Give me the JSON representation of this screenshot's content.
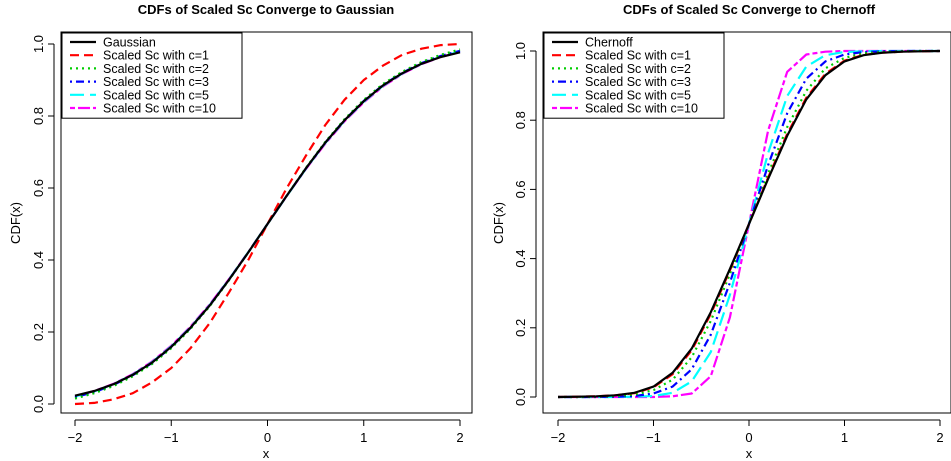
{
  "chart_data": [
    {
      "type": "line",
      "title": "CDFs of Scaled Sc Converge to Gaussian",
      "xlabel": "x",
      "ylabel": "CDF(x)",
      "xlim": [
        -2,
        2
      ],
      "ylim": [
        0,
        1
      ],
      "x_ticks": [
        "-2",
        "-1",
        "0",
        "1",
        "2"
      ],
      "y_ticks": [
        "0.0",
        "0.2",
        "0.4",
        "0.6",
        "0.8",
        "1.0"
      ],
      "grid": false,
      "legend_position": "top-left",
      "x": [
        -2.0,
        -1.8,
        -1.6,
        -1.4,
        -1.2,
        -1.0,
        -0.8,
        -0.6,
        -0.4,
        -0.2,
        0.0,
        0.2,
        0.4,
        0.6,
        0.8,
        1.0,
        1.2,
        1.4,
        1.6,
        1.8,
        2.0
      ],
      "series": [
        {
          "name": "Gaussian",
          "color": "#000000",
          "dash": "solid",
          "values": [
            0.023,
            0.036,
            0.055,
            0.081,
            0.115,
            0.159,
            0.212,
            0.274,
            0.345,
            0.421,
            0.5,
            0.579,
            0.655,
            0.726,
            0.788,
            0.841,
            0.885,
            0.919,
            0.945,
            0.964,
            0.977
          ]
        },
        {
          "name": "Scaled Sc with c=1",
          "color": "#ff0000",
          "dash": "dashed",
          "values": [
            0.0,
            0.003,
            0.013,
            0.03,
            0.06,
            0.1,
            0.155,
            0.225,
            0.31,
            0.4,
            0.5,
            0.6,
            0.69,
            0.775,
            0.845,
            0.9,
            0.94,
            0.97,
            0.987,
            0.997,
            1.0
          ]
        },
        {
          "name": "Scaled Sc with c=2",
          "color": "#00cd00",
          "dash": "dotted",
          "values": [
            0.015,
            0.03,
            0.05,
            0.077,
            0.111,
            0.155,
            0.209,
            0.272,
            0.344,
            0.421,
            0.5,
            0.579,
            0.656,
            0.728,
            0.791,
            0.845,
            0.889,
            0.923,
            0.95,
            0.97,
            0.985
          ]
        },
        {
          "name": "Scaled Sc with c=3",
          "color": "#0000ff",
          "dash": "dotdash",
          "values": [
            0.019,
            0.033,
            0.053,
            0.08,
            0.114,
            0.158,
            0.211,
            0.274,
            0.345,
            0.421,
            0.5,
            0.579,
            0.655,
            0.726,
            0.789,
            0.842,
            0.886,
            0.92,
            0.947,
            0.967,
            0.981
          ]
        },
        {
          "name": "Scaled Sc with c=5",
          "color": "#00ffff",
          "dash": "longdash",
          "values": [
            0.021,
            0.035,
            0.055,
            0.082,
            0.116,
            0.16,
            0.213,
            0.275,
            0.346,
            0.422,
            0.5,
            0.578,
            0.654,
            0.725,
            0.787,
            0.84,
            0.884,
            0.918,
            0.945,
            0.965,
            0.979
          ]
        },
        {
          "name": "Scaled Sc with c=10",
          "color": "#ff00ff",
          "dash": "twodash",
          "values": [
            0.022,
            0.036,
            0.056,
            0.083,
            0.118,
            0.162,
            0.215,
            0.277,
            0.347,
            0.422,
            0.5,
            0.578,
            0.653,
            0.723,
            0.785,
            0.838,
            0.882,
            0.917,
            0.944,
            0.964,
            0.978
          ]
        }
      ]
    },
    {
      "type": "line",
      "title": "CDFs of Scaled Sc Converge to Chernoff",
      "xlabel": "x",
      "ylabel": "CDF(x)",
      "xlim": [
        -2,
        2
      ],
      "ylim": [
        0,
        1
      ],
      "x_ticks": [
        "-2",
        "-1",
        "0",
        "1",
        "2"
      ],
      "y_ticks": [
        "0.0",
        "0.2",
        "0.4",
        "0.6",
        "0.8",
        "1.0"
      ],
      "grid": false,
      "legend_position": "top-left",
      "x": [
        -2.0,
        -1.8,
        -1.6,
        -1.4,
        -1.2,
        -1.0,
        -0.8,
        -0.6,
        -0.4,
        -0.2,
        0.0,
        0.2,
        0.4,
        0.6,
        0.8,
        1.0,
        1.2,
        1.4,
        1.6,
        1.8,
        2.0
      ],
      "series": [
        {
          "name": "Chernoff",
          "color": "#000000",
          "dash": "solid",
          "values": [
            0.0,
            0.001,
            0.002,
            0.005,
            0.012,
            0.03,
            0.07,
            0.14,
            0.245,
            0.37,
            0.5,
            0.63,
            0.755,
            0.86,
            0.93,
            0.97,
            0.988,
            0.995,
            0.998,
            0.999,
            1.0
          ]
        },
        {
          "name": "Scaled Sc with c=1",
          "color": "#ff0000",
          "dash": "dashed",
          "values": [
            0.0,
            0.001,
            0.002,
            0.005,
            0.011,
            0.028,
            0.066,
            0.135,
            0.24,
            0.366,
            0.5,
            0.634,
            0.76,
            0.865,
            0.934,
            0.972,
            0.989,
            0.995,
            0.998,
            0.999,
            1.0
          ]
        },
        {
          "name": "Scaled Sc with c=2",
          "color": "#00cd00",
          "dash": "dotted",
          "values": [
            0.0,
            0.0,
            0.001,
            0.003,
            0.007,
            0.02,
            0.05,
            0.115,
            0.22,
            0.355,
            0.5,
            0.645,
            0.78,
            0.885,
            0.95,
            0.98,
            0.993,
            0.997,
            0.999,
            1.0,
            1.0
          ]
        },
        {
          "name": "Scaled Sc with c=3",
          "color": "#0000ff",
          "dash": "dotdash",
          "values": [
            0.0,
            0.0,
            0.0,
            0.001,
            0.003,
            0.01,
            0.03,
            0.08,
            0.18,
            0.33,
            0.5,
            0.67,
            0.82,
            0.92,
            0.97,
            0.99,
            0.997,
            0.999,
            1.0,
            1.0,
            1.0
          ]
        },
        {
          "name": "Scaled Sc with c=5",
          "color": "#00ffff",
          "dash": "longdash",
          "values": [
            0.0,
            0.0,
            0.0,
            0.0,
            0.001,
            0.003,
            0.012,
            0.045,
            0.13,
            0.295,
            0.5,
            0.705,
            0.87,
            0.955,
            0.988,
            0.997,
            0.999,
            1.0,
            1.0,
            1.0,
            1.0
          ]
        },
        {
          "name": "Scaled Sc with c=10",
          "color": "#ff00ff",
          "dash": "twodash",
          "values": [
            0.0,
            0.0,
            0.0,
            0.0,
            0.0,
            0.0,
            0.002,
            0.01,
            0.06,
            0.23,
            0.5,
            0.77,
            0.94,
            0.99,
            0.998,
            1.0,
            1.0,
            1.0,
            1.0,
            1.0,
            1.0
          ]
        }
      ]
    }
  ]
}
